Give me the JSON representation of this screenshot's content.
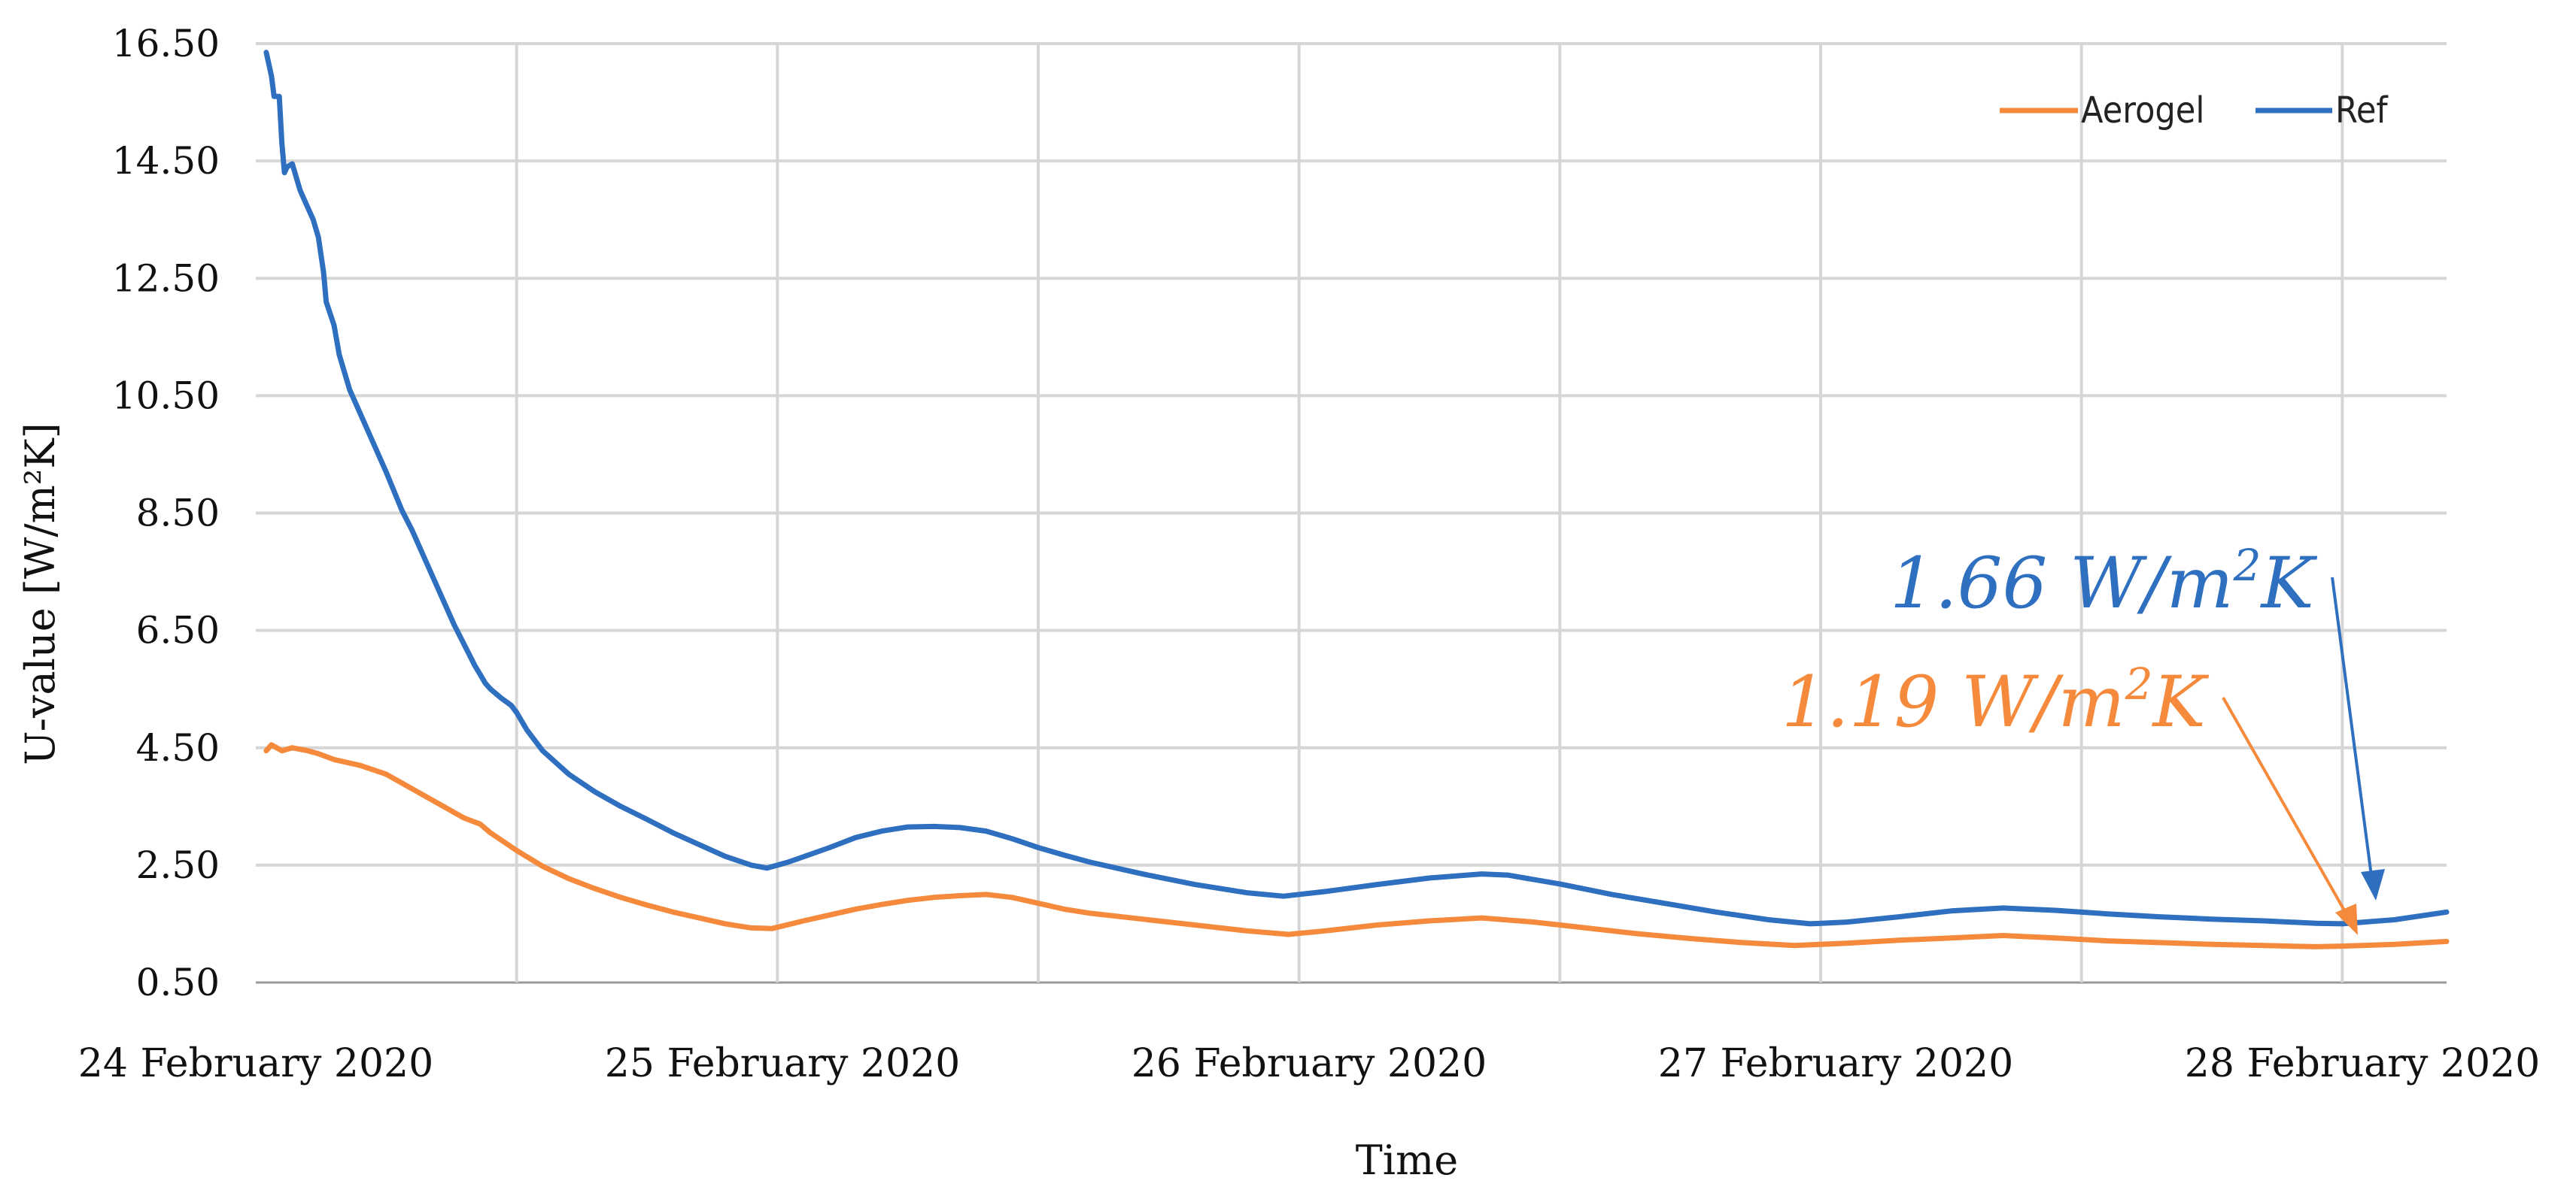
{
  "chart_data": {
    "type": "line",
    "xlabel": "Time",
    "ylabel": "U-value [W/m²K]",
    "ylim": [
      0.5,
      16.5
    ],
    "xlim": [
      0,
      4.2
    ],
    "yticks": [
      "0.50",
      "2.50",
      "4.50",
      "6.50",
      "8.50",
      "10.50",
      "12.50",
      "14.50",
      "16.50"
    ],
    "xticks": [
      {
        "label": "24 February 2020",
        "x": 0
      },
      {
        "label": "25 February 2020",
        "x": 1
      },
      {
        "label": "26 February 2020",
        "x": 2
      },
      {
        "label": "27 February 2020",
        "x": 3
      },
      {
        "label": "28 February 2020",
        "x": 4
      }
    ],
    "grid": true,
    "legend_position": "top-right",
    "series": [
      {
        "name": "Aerogel",
        "color": "#f58a3c",
        "points": [
          [
            0.02,
            4.45
          ],
          [
            0.03,
            4.55
          ],
          [
            0.05,
            4.45
          ],
          [
            0.07,
            4.5
          ],
          [
            0.1,
            4.45
          ],
          [
            0.12,
            4.4
          ],
          [
            0.15,
            4.3
          ],
          [
            0.2,
            4.2
          ],
          [
            0.25,
            4.05
          ],
          [
            0.3,
            3.8
          ],
          [
            0.35,
            3.55
          ],
          [
            0.4,
            3.3
          ],
          [
            0.43,
            3.2
          ],
          [
            0.45,
            3.05
          ],
          [
            0.5,
            2.75
          ],
          [
            0.55,
            2.48
          ],
          [
            0.6,
            2.27
          ],
          [
            0.65,
            2.1
          ],
          [
            0.7,
            1.95
          ],
          [
            0.75,
            1.82
          ],
          [
            0.8,
            1.7
          ],
          [
            0.85,
            1.6
          ],
          [
            0.9,
            1.5
          ],
          [
            0.95,
            1.43
          ],
          [
            0.99,
            1.42
          ],
          [
            1.05,
            1.55
          ],
          [
            1.1,
            1.65
          ],
          [
            1.15,
            1.75
          ],
          [
            1.2,
            1.83
          ],
          [
            1.25,
            1.9
          ],
          [
            1.3,
            1.95
          ],
          [
            1.35,
            1.98
          ],
          [
            1.4,
            2.0
          ],
          [
            1.45,
            1.95
          ],
          [
            1.5,
            1.85
          ],
          [
            1.55,
            1.75
          ],
          [
            1.6,
            1.68
          ],
          [
            1.7,
            1.58
          ],
          [
            1.8,
            1.48
          ],
          [
            1.9,
            1.38
          ],
          [
            1.98,
            1.32
          ],
          [
            2.05,
            1.38
          ],
          [
            2.15,
            1.48
          ],
          [
            2.25,
            1.55
          ],
          [
            2.35,
            1.6
          ],
          [
            2.45,
            1.53
          ],
          [
            2.55,
            1.43
          ],
          [
            2.65,
            1.33
          ],
          [
            2.75,
            1.25
          ],
          [
            2.85,
            1.18
          ],
          [
            2.95,
            1.13
          ],
          [
            3.05,
            1.17
          ],
          [
            3.15,
            1.22
          ],
          [
            3.25,
            1.26
          ],
          [
            3.35,
            1.3
          ],
          [
            3.45,
            1.26
          ],
          [
            3.55,
            1.21
          ],
          [
            3.65,
            1.18
          ],
          [
            3.75,
            1.15
          ],
          [
            3.85,
            1.13
          ],
          [
            3.95,
            1.11
          ],
          [
            4.0,
            1.12
          ],
          [
            4.1,
            1.15
          ],
          [
            4.2,
            1.2
          ]
        ]
      },
      {
        "name": "Ref",
        "color": "#2e6fc0",
        "points": [
          [
            0.02,
            16.35
          ],
          [
            0.03,
            15.95
          ],
          [
            0.035,
            15.6
          ],
          [
            0.045,
            15.6
          ],
          [
            0.05,
            14.8
          ],
          [
            0.055,
            14.3
          ],
          [
            0.06,
            14.4
          ],
          [
            0.07,
            14.45
          ],
          [
            0.075,
            14.3
          ],
          [
            0.085,
            14.0
          ],
          [
            0.1,
            13.7
          ],
          [
            0.11,
            13.5
          ],
          [
            0.12,
            13.2
          ],
          [
            0.13,
            12.6
          ],
          [
            0.135,
            12.1
          ],
          [
            0.15,
            11.7
          ],
          [
            0.16,
            11.2
          ],
          [
            0.18,
            10.6
          ],
          [
            0.2,
            10.2
          ],
          [
            0.22,
            9.8
          ],
          [
            0.25,
            9.2
          ],
          [
            0.28,
            8.55
          ],
          [
            0.3,
            8.2
          ],
          [
            0.33,
            7.6
          ],
          [
            0.36,
            7.0
          ],
          [
            0.38,
            6.6
          ],
          [
            0.4,
            6.25
          ],
          [
            0.42,
            5.9
          ],
          [
            0.44,
            5.6
          ],
          [
            0.45,
            5.5
          ],
          [
            0.47,
            5.35
          ],
          [
            0.49,
            5.22
          ],
          [
            0.5,
            5.1
          ],
          [
            0.52,
            4.8
          ],
          [
            0.55,
            4.45
          ],
          [
            0.6,
            4.05
          ],
          [
            0.65,
            3.75
          ],
          [
            0.7,
            3.5
          ],
          [
            0.75,
            3.28
          ],
          [
            0.8,
            3.05
          ],
          [
            0.85,
            2.85
          ],
          [
            0.9,
            2.65
          ],
          [
            0.95,
            2.5
          ],
          [
            0.98,
            2.45
          ],
          [
            1.02,
            2.55
          ],
          [
            1.1,
            2.8
          ],
          [
            1.15,
            2.97
          ],
          [
            1.2,
            3.08
          ],
          [
            1.25,
            3.15
          ],
          [
            1.3,
            3.16
          ],
          [
            1.35,
            3.14
          ],
          [
            1.4,
            3.08
          ],
          [
            1.45,
            2.95
          ],
          [
            1.5,
            2.8
          ],
          [
            1.55,
            2.67
          ],
          [
            1.6,
            2.55
          ],
          [
            1.7,
            2.35
          ],
          [
            1.8,
            2.17
          ],
          [
            1.9,
            2.03
          ],
          [
            1.97,
            1.97
          ],
          [
            2.05,
            2.05
          ],
          [
            2.15,
            2.17
          ],
          [
            2.25,
            2.28
          ],
          [
            2.35,
            2.35
          ],
          [
            2.4,
            2.33
          ],
          [
            2.5,
            2.18
          ],
          [
            2.6,
            2.0
          ],
          [
            2.7,
            1.85
          ],
          [
            2.8,
            1.7
          ],
          [
            2.9,
            1.57
          ],
          [
            2.98,
            1.5
          ],
          [
            3.05,
            1.53
          ],
          [
            3.15,
            1.62
          ],
          [
            3.25,
            1.72
          ],
          [
            3.35,
            1.77
          ],
          [
            3.45,
            1.73
          ],
          [
            3.55,
            1.67
          ],
          [
            3.65,
            1.62
          ],
          [
            3.75,
            1.58
          ],
          [
            3.85,
            1.55
          ],
          [
            3.95,
            1.51
          ],
          [
            4.0,
            1.5
          ],
          [
            4.1,
            1.57
          ],
          [
            4.2,
            1.7
          ]
        ]
      }
    ],
    "annotations": [
      {
        "base": "1.66 W/m",
        "sup": "2",
        "unit": "K",
        "color": "#2e6fc0",
        "value": 1.66
      },
      {
        "base": "1.19 W/m",
        "sup": "2",
        "unit": "K",
        "color": "#f58a3c",
        "value": 1.19
      }
    ]
  }
}
